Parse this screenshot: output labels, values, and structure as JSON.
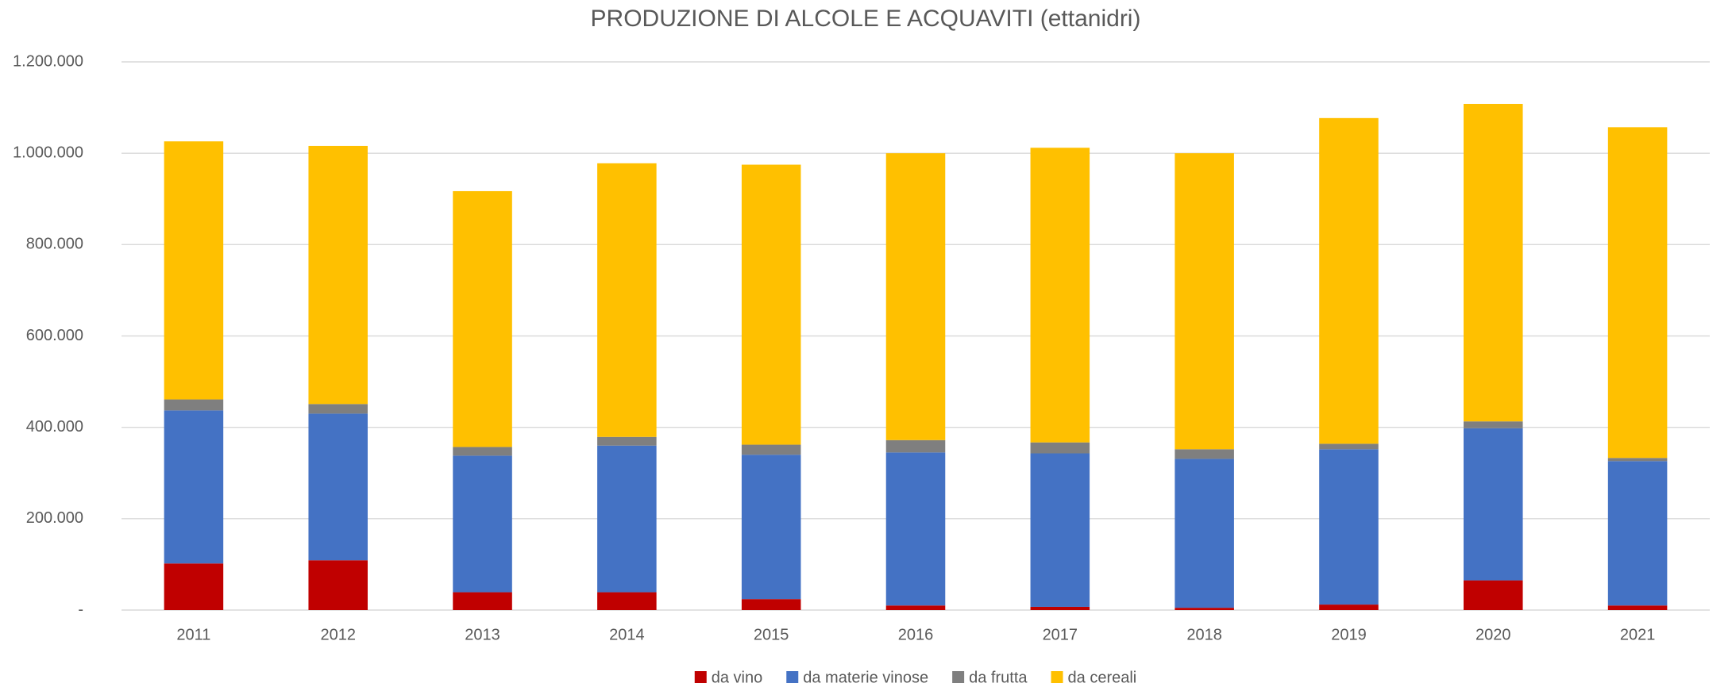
{
  "chart_data": {
    "type": "stacked_bar",
    "title": "PRODUZIONE DI ALCOLE E ACQUAVITI (ettanidri)",
    "categories": [
      "2011",
      "2012",
      "2013",
      "2014",
      "2015",
      "2016",
      "2017",
      "2018",
      "2019",
      "2020",
      "2021"
    ],
    "series": [
      {
        "name": "da vino",
        "color": "#c00000",
        "values": [
          102000,
          109000,
          39000,
          39000,
          24000,
          10000,
          7000,
          5000,
          12000,
          65000,
          10000
        ]
      },
      {
        "name": "da materie vinose",
        "color": "#4472c4",
        "values": [
          335000,
          321000,
          299000,
          321000,
          316000,
          335000,
          336000,
          326000,
          340000,
          333000,
          316000
        ]
      },
      {
        "name": "da frutta",
        "color": "#7f7f7f",
        "values": [
          24000,
          21000,
          19000,
          19000,
          22000,
          27000,
          24000,
          21000,
          12000,
          15000,
          7000
        ]
      },
      {
        "name": "da cereali",
        "color": "#ffc000",
        "values": [
          565000,
          565000,
          560000,
          599000,
          613000,
          628000,
          645000,
          648000,
          713000,
          695000,
          724000
        ]
      }
    ],
    "ylim": [
      0,
      1200000
    ],
    "yticks": [
      {
        "value": 0,
        "label": "-"
      },
      {
        "value": 200000,
        "label": "200.000"
      },
      {
        "value": 400000,
        "label": "400.000"
      },
      {
        "value": 600000,
        "label": "600.000"
      },
      {
        "value": 800000,
        "label": "800.000"
      },
      {
        "value": 1000000,
        "label": "1.000.000"
      },
      {
        "value": 1200000,
        "label": "1.200.000"
      }
    ],
    "grid": true,
    "legend": "bottom"
  }
}
